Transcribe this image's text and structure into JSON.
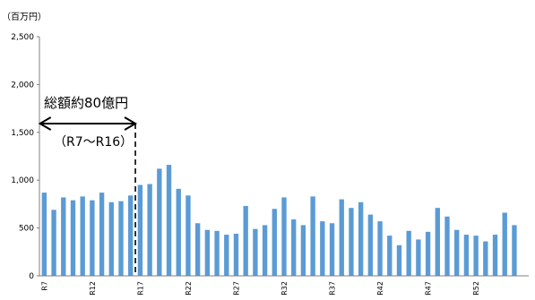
{
  "chart_data": {
    "type": "bar",
    "unit_label": "（百万円）",
    "ylim": [
      0,
      2500
    ],
    "yticks": [
      0,
      500,
      1000,
      1500,
      2000,
      2500
    ],
    "ytick_labels": [
      "0",
      "500",
      "1,000",
      "1,500",
      "2,000",
      "2,500"
    ],
    "grid": false,
    "bar_color": "#5b9bd5",
    "categories": [
      "R7",
      "R8",
      "R9",
      "R10",
      "R11",
      "R12",
      "R13",
      "R14",
      "R15",
      "R16",
      "R17",
      "R18",
      "R19",
      "R20",
      "R21",
      "R22",
      "R23",
      "R24",
      "R25",
      "R26",
      "R27",
      "R28",
      "R29",
      "R30",
      "R31",
      "R32",
      "R33",
      "R34",
      "R35",
      "R36",
      "R37",
      "R38",
      "R39",
      "R40",
      "R41",
      "R42",
      "R43",
      "R44",
      "R45",
      "R46",
      "R47",
      "R48",
      "R49",
      "R50",
      "R51",
      "R52",
      "R53",
      "R54",
      "R55",
      "R56",
      "R57"
    ],
    "xtick_labels": [
      "R7",
      "R12",
      "R17",
      "R22",
      "R27",
      "R32",
      "R37",
      "R42",
      "R47",
      "R52"
    ],
    "values": [
      870,
      690,
      820,
      790,
      830,
      790,
      870,
      770,
      780,
      840,
      950,
      960,
      1120,
      1160,
      910,
      840,
      550,
      480,
      470,
      430,
      440,
      730,
      490,
      530,
      700,
      820,
      590,
      530,
      830,
      570,
      550,
      800,
      710,
      770,
      640,
      570,
      420,
      320,
      470,
      380,
      460,
      710,
      620,
      480,
      430,
      420,
      360,
      430,
      660,
      530,
      0
    ],
    "annotation": {
      "title": "総額約80億円",
      "subtitle": "（R7〜R16）",
      "start": "R7",
      "end": "R16"
    }
  }
}
